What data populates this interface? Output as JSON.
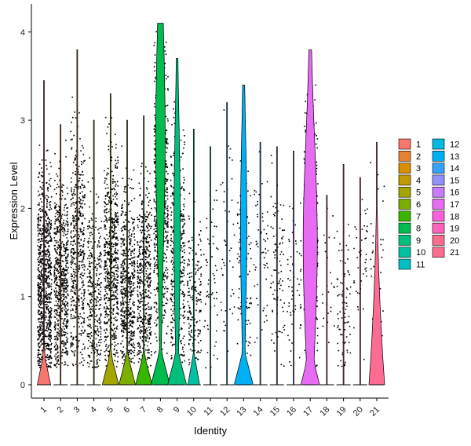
{
  "chart_data": {
    "type": "violin",
    "xlabel": "Identity",
    "ylabel": "Expression Level",
    "ylim": [
      -0.2,
      4.35
    ],
    "yticks": [
      0,
      1,
      2,
      3,
      4
    ],
    "grid": false,
    "legend_position": "right",
    "categories": [
      "1",
      "2",
      "3",
      "4",
      "5",
      "6",
      "7",
      "8",
      "9",
      "10",
      "11",
      "12",
      "13",
      "14",
      "15",
      "16",
      "17",
      "18",
      "19",
      "20",
      "21"
    ],
    "colors": [
      "#F8766D",
      "#EA8331",
      "#D89000",
      "#C09B00",
      "#A3A500",
      "#7CAE00",
      "#39B600",
      "#00BB4E",
      "#00BF7D",
      "#00C1A3",
      "#00BFC4",
      "#00BAE0",
      "#00B0F6",
      "#35A2FF",
      "#9590FF",
      "#C77CFF",
      "#E76BF3",
      "#FA62DB",
      "#FF62BC",
      "#FF6C91",
      "#FF6C91"
    ],
    "max_values": [
      3.45,
      2.95,
      3.8,
      3.0,
      3.3,
      3.0,
      3.05,
      4.1,
      3.7,
      2.9,
      2.7,
      3.2,
      3.4,
      2.75,
      2.7,
      2.65,
      3.8,
      2.15,
      2.5,
      2.35,
      2.75
    ],
    "dot_count": [
      900,
      650,
      500,
      350,
      650,
      550,
      500,
      700,
      420,
      180,
      60,
      45,
      120,
      60,
      90,
      60,
      450,
      25,
      80,
      45,
      30
    ],
    "dot_center": [
      1.1,
      1.2,
      1.5,
      1.0,
      1.4,
      1.1,
      1.2,
      2.1,
      1.5,
      1.0,
      1.3,
      1.7,
      1.3,
      1.4,
      1.3,
      1.2,
      1.8,
      1.2,
      0.9,
      1.5,
      1.5
    ]
  }
}
